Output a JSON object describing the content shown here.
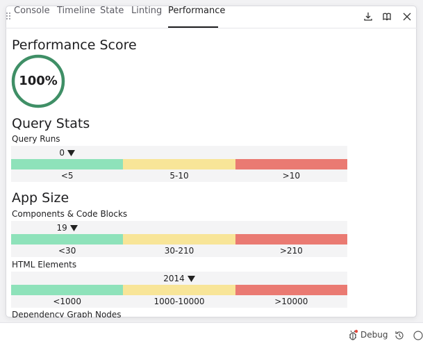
{
  "tabs": [
    "Console",
    "Timeline",
    "State",
    "Linting",
    "Performance"
  ],
  "score": {
    "title": "Performance Score",
    "value": "100%"
  },
  "sections": [
    {
      "title": "Query Stats",
      "metrics": [
        {
          "name": "Query Runs",
          "value": 0,
          "ranges": [
            "<5",
            "5-10",
            ">10"
          ]
        }
      ]
    },
    {
      "title": "App Size",
      "metrics": [
        {
          "name": "Components & Code Blocks",
          "value": 19,
          "ranges": [
            "<30",
            "30-210",
            ">210"
          ]
        },
        {
          "name": "HTML Elements",
          "value": 2014,
          "ranges": [
            "<1000",
            "1000-10000",
            ">10000"
          ]
        },
        {
          "name": "Dependency Graph Nodes"
        }
      ]
    }
  ],
  "footer": {
    "debug": "Debug"
  }
}
